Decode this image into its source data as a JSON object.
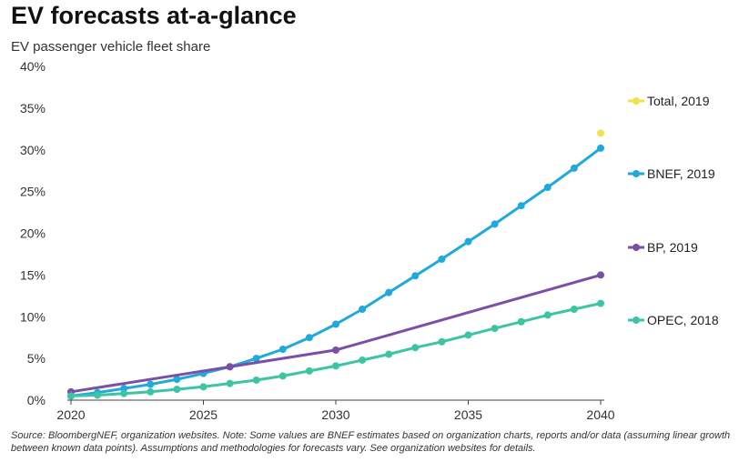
{
  "title": "EV forecasts at-a-glance",
  "subtitle": "EV passenger vehicle fleet share",
  "source": "Source: BloombergNEF, organization websites. Note: Some values are BNEF estimates based on organization charts, reports and/or data (assuming linear growth between known data points). Assumptions and methodologies for forecasts vary. See organization websites for details.",
  "chart_data": {
    "type": "line",
    "xlim": [
      2020,
      2040
    ],
    "ylim": [
      0,
      40
    ],
    "x_ticks": [
      2020,
      2025,
      2030,
      2035,
      2040
    ],
    "y_ticks": [
      0,
      5,
      10,
      15,
      20,
      25,
      30,
      35,
      40
    ],
    "x_tick_labels": [
      "2020",
      "2025",
      "2030",
      "2035",
      "2040"
    ],
    "y_tick_labels": [
      "0%",
      "5%",
      "10%",
      "15%",
      "20%",
      "25%",
      "30%",
      "35%",
      "40%"
    ],
    "grid": false,
    "legend_position": "right",
    "series": [
      {
        "name": "Total, 2019",
        "color": "#f2e14a",
        "markers": true,
        "x": [
          2040
        ],
        "y": [
          32.0
        ]
      },
      {
        "name": "BNEF, 2019",
        "color": "#1fa9dc",
        "markers": true,
        "x": [
          2020,
          2021,
          2022,
          2023,
          2024,
          2025,
          2026,
          2027,
          2028,
          2029,
          2030,
          2031,
          2032,
          2033,
          2034,
          2035,
          2036,
          2037,
          2038,
          2039,
          2040
        ],
        "y": [
          0.5,
          0.9,
          1.4,
          1.9,
          2.5,
          3.2,
          4.0,
          5.0,
          6.1,
          7.5,
          9.1,
          10.9,
          12.9,
          14.9,
          16.9,
          19.0,
          21.1,
          23.3,
          25.5,
          27.8,
          30.2
        ]
      },
      {
        "name": "BP, 2019",
        "color": "#7b4fa8",
        "markers": true,
        "x": [
          2020,
          2026,
          2030,
          2040
        ],
        "y": [
          1.0,
          4.0,
          6.0,
          15.0
        ]
      },
      {
        "name": "OPEC, 2018",
        "color": "#3cc4a4",
        "markers": true,
        "x": [
          2020,
          2021,
          2022,
          2023,
          2024,
          2025,
          2026,
          2027,
          2028,
          2029,
          2030,
          2031,
          2032,
          2033,
          2034,
          2035,
          2036,
          2037,
          2038,
          2039,
          2040
        ],
        "y": [
          0.5,
          0.6,
          0.8,
          1.0,
          1.3,
          1.6,
          2.0,
          2.4,
          2.9,
          3.5,
          4.1,
          4.8,
          5.5,
          6.3,
          7.0,
          7.8,
          8.6,
          9.4,
          10.2,
          10.9,
          11.6
        ]
      }
    ]
  }
}
